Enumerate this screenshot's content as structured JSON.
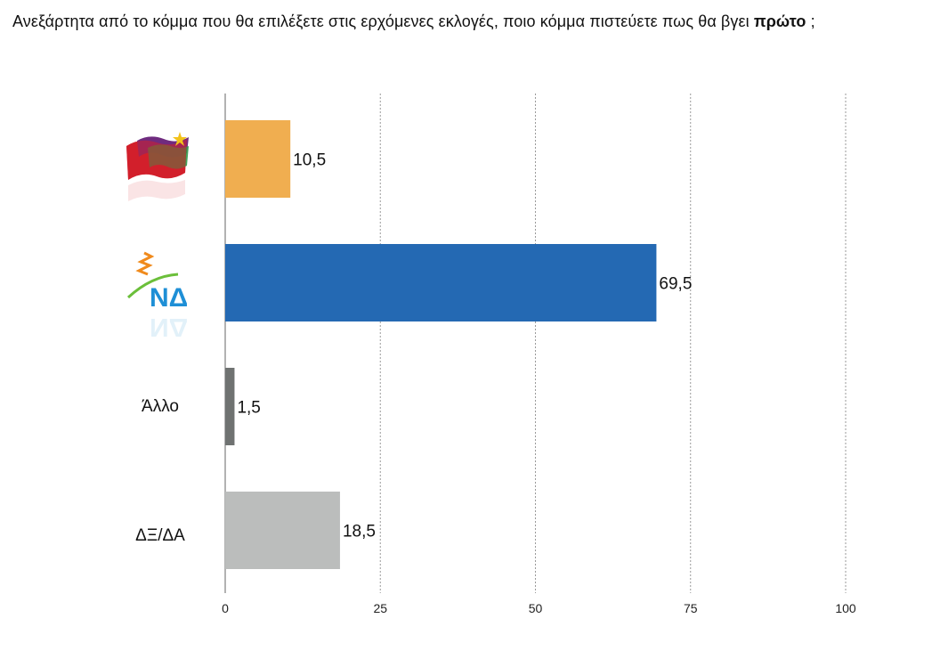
{
  "question": {
    "text_before": "Ανεξάρτητα από το κόμμα που θα επιλέξετε στις ερχόμενες εκλογές, ποιο κόμμα πιστεύετε πως θα βγει ",
    "text_bold": "πρώτο",
    "text_after": " ;"
  },
  "chart_data": {
    "type": "bar",
    "orientation": "horizontal",
    "categories": [
      "ΣΥΡΙΖΑ",
      "ΝΔ",
      "Άλλο",
      "ΔΞ/ΔΑ"
    ],
    "values": [
      10.5,
      69.5,
      1.5,
      18.5
    ],
    "value_labels": [
      "10,5",
      "69,5",
      "1,5",
      "18,5"
    ],
    "colors": [
      "#f0ae50",
      "#2469b3",
      "#6f7271",
      "#bbbdbc"
    ],
    "xlim": [
      0,
      100
    ],
    "xticks": [
      0,
      25,
      50,
      75,
      100
    ],
    "grid": "vertical-dotted",
    "category_display": [
      {
        "kind": "logo",
        "icon": "syriza-flag-logo-icon"
      },
      {
        "kind": "logo",
        "icon": "nd-logo-icon",
        "text": "ΝΔ"
      },
      {
        "kind": "text",
        "text": "Άλλο"
      },
      {
        "kind": "text",
        "text": "ΔΞ/ΔΑ"
      }
    ]
  }
}
